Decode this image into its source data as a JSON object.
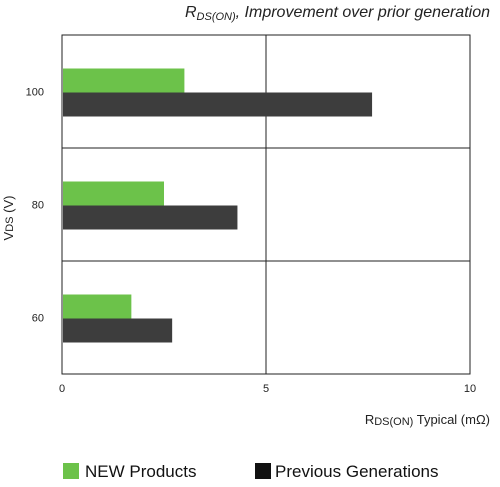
{
  "chart_data": {
    "type": "bar",
    "orientation": "horizontal",
    "title": {
      "main": "R",
      "sub": "DS(ON)",
      "rest": ", Improvement over prior generation"
    },
    "xlabel": {
      "main": "R",
      "sub": "DS(ON)",
      "rest": " Typical (mΩ)"
    },
    "ylabel": {
      "main": "V",
      "sub": "DS",
      "rest": " (V)"
    },
    "categories": [
      "100",
      "80",
      "60"
    ],
    "xlim": [
      0,
      10
    ],
    "xticks": [
      "0",
      "5",
      "10"
    ],
    "grid": true,
    "legend_position": "bottom",
    "series": [
      {
        "name": "NEW Products",
        "color": "#6cc24a",
        "values": [
          3.0,
          2.5,
          1.7
        ]
      },
      {
        "name": "Previous Generations",
        "color": "#3d3d3d",
        "values": [
          7.6,
          4.3,
          2.7
        ]
      }
    ],
    "legend_swatch_colors": [
      "#6cc24a",
      "#111111"
    ]
  }
}
